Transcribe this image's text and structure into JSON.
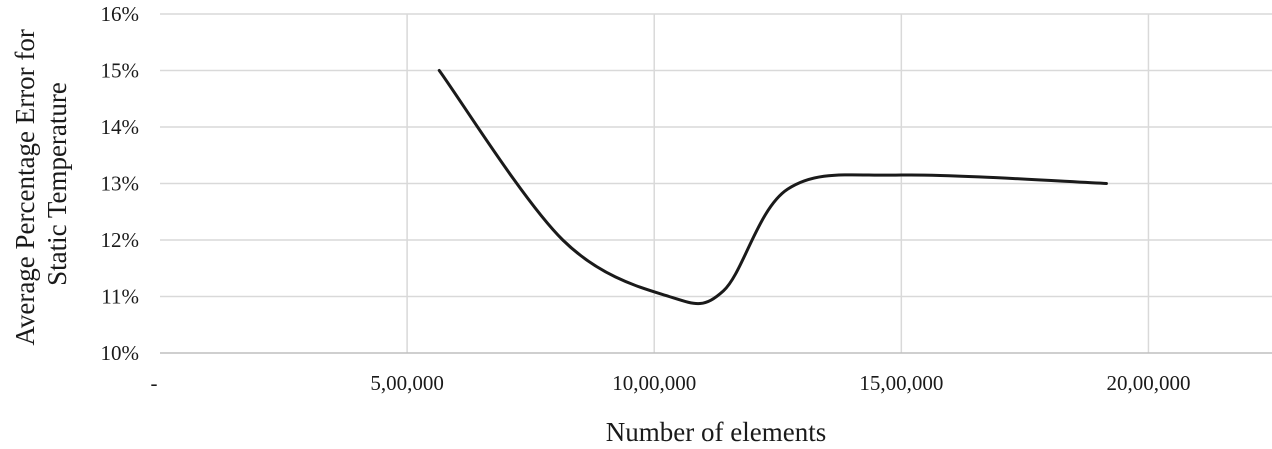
{
  "chart_data": {
    "type": "line",
    "title": "",
    "xlabel": "Number of elements",
    "ylabel_lines": [
      "Average Percentage Error for",
      "Static Temperature"
    ],
    "xlim": [
      0,
      2250000
    ],
    "ylim": [
      10,
      16
    ],
    "x_ticks": [
      {
        "value": 0,
        "label": "-"
      },
      {
        "value": 500000,
        "label": "5,00,000"
      },
      {
        "value": 1000000,
        "label": "10,00,000"
      },
      {
        "value": 1500000,
        "label": "15,00,000"
      },
      {
        "value": 2000000,
        "label": "20,00,000"
      }
    ],
    "y_ticks": [
      {
        "value": 10,
        "label": "10%"
      },
      {
        "value": 11,
        "label": "11%"
      },
      {
        "value": 12,
        "label": "12%"
      },
      {
        "value": 13,
        "label": "13%"
      },
      {
        "value": 14,
        "label": "14%"
      },
      {
        "value": 15,
        "label": "15%"
      },
      {
        "value": 16,
        "label": "16%"
      }
    ],
    "grid": "vertical-and-horizontal",
    "legend": "none",
    "series": [
      {
        "color": "#1a1a1a",
        "smooth": true,
        "points": [
          {
            "x": 565000,
            "y": 15.0
          },
          {
            "x": 815000,
            "y": 12.0
          },
          {
            "x": 1030000,
            "y": 11.0
          },
          {
            "x": 1140000,
            "y": 11.1
          },
          {
            "x": 1270000,
            "y": 12.9
          },
          {
            "x": 1500000,
            "y": 13.15
          },
          {
            "x": 1915000,
            "y": 13.0
          }
        ]
      }
    ]
  }
}
